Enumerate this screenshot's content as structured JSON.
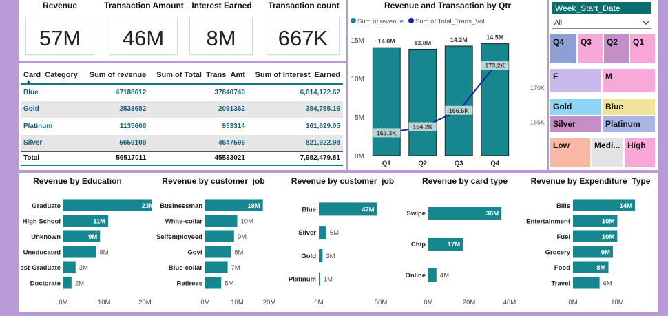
{
  "kpis": [
    {
      "title": "Revenue",
      "value": "57M"
    },
    {
      "title": "Transaction Amount",
      "value": "46M"
    },
    {
      "title": "Interest Earned",
      "value": "8M"
    },
    {
      "title": "Transaction count",
      "value": "667K"
    }
  ],
  "category_table": {
    "headers": [
      "Card_Category",
      "Sum of revenue",
      "Sum of Total_Trans_Amt",
      "Sum of Interest_Earned"
    ],
    "rows": [
      [
        "Blue",
        "47188612",
        "37840749",
        "6,614,172.62"
      ],
      [
        "Gold",
        "2533682",
        "2091362",
        "384,755.16"
      ],
      [
        "Platinum",
        "1135608",
        "953314",
        "161,629.05"
      ],
      [
        "Silver",
        "5659109",
        "4647596",
        "821,922.98"
      ]
    ],
    "total": [
      "Total",
      "56517011",
      "45533021",
      "7,982,479.81"
    ]
  },
  "slicers": {
    "header": "Week_Start_Date",
    "dropdown_value": "All",
    "quarters": [
      {
        "label": "Q4",
        "color": "#8e9fd6"
      },
      {
        "label": "Q3",
        "color": "#f7a8d8"
      },
      {
        "label": "Q2",
        "color": "#c48ec8"
      },
      {
        "label": "Q1",
        "color": "#f7a8d8"
      }
    ],
    "gender": [
      {
        "label": "F",
        "color": "#c9b8ea"
      },
      {
        "label": "M",
        "color": "#f7aad9"
      }
    ],
    "card": [
      {
        "label": "Gold",
        "color": "#8fd3f5"
      },
      {
        "label": "Blue",
        "color": "#f2e39a"
      },
      {
        "label": "Silver",
        "color": "#c48ec8"
      },
      {
        "label": "Platinum",
        "color": "#a8b5e6"
      }
    ],
    "income": [
      {
        "label": "Low",
        "color": "#f7b9a3"
      },
      {
        "label": "Medi...",
        "color": "#e3e3e3"
      },
      {
        "label": "High",
        "color": "#f7a8d8"
      }
    ]
  },
  "chart_data": [
    {
      "type": "bar",
      "title": "Revenue and Transaction by Qtr",
      "legend": [
        {
          "name": "Sum of revenue",
          "color": "#16878e"
        },
        {
          "name": "Sum of Total_Trans_Vol",
          "color": "#12239e"
        }
      ],
      "legend_position": "top-left",
      "categories": [
        "Q1",
        "Q2",
        "Q3",
        "Q4"
      ],
      "series": [
        {
          "name": "Sum of revenue",
          "type": "bar",
          "values": [
            14.0,
            13.8,
            14.2,
            14.5
          ],
          "labels": [
            "14.0M",
            "13.8M",
            "14.2M",
            "14.5M"
          ]
        },
        {
          "name": "Sum of Total_Trans_Vol",
          "type": "line",
          "values": [
            163.3,
            164.2,
            166.6,
            173.2
          ],
          "labels": [
            "163.3K",
            "164.2K",
            "166.6K",
            "173.2K"
          ]
        }
      ],
      "yticks_left": [
        "15M",
        "10M",
        "5M",
        "0M"
      ],
      "ylim_left": [
        0,
        15
      ],
      "yticks_right": [
        "170K",
        "165K"
      ],
      "grid": false
    },
    {
      "type": "bar",
      "orientation": "horizontal",
      "title": "Revenue by Education",
      "categories": [
        "Graduate",
        "High School",
        "Unknown",
        "Uneducated",
        "Post-Graduate",
        "Doctorate"
      ],
      "values": [
        23,
        11,
        9,
        8,
        3,
        2
      ],
      "labels": [
        "23M",
        "11M",
        "9M",
        "8M",
        "3M",
        "2M"
      ],
      "xticks": [
        "0M",
        "10M",
        "20M"
      ],
      "xlim": [
        0,
        25
      ]
    },
    {
      "type": "bar",
      "orientation": "horizontal",
      "title": "Revenue by customer_job",
      "categories": [
        "Businessman",
        "White-collar",
        "Selfemployeed",
        "Govt",
        "Blue-collar",
        "Retirees"
      ],
      "values": [
        18,
        10,
        9,
        8,
        7,
        5
      ],
      "labels": [
        "18M",
        "10M",
        "9M",
        "8M",
        "7M",
        "5M"
      ],
      "xticks": [
        "0M",
        "10M",
        "20M"
      ],
      "xlim": [
        0,
        20
      ]
    },
    {
      "type": "bar",
      "orientation": "horizontal",
      "title": "Revenue by customer_job",
      "categories": [
        "Blue",
        "Silver",
        "Gold",
        "Platinum"
      ],
      "values": [
        47,
        6,
        3,
        1
      ],
      "labels": [
        "47M",
        "6M",
        "3M",
        "1M"
      ],
      "xticks": [
        "0M",
        "50M"
      ],
      "xlim": [
        0,
        50
      ]
    },
    {
      "type": "bar",
      "orientation": "horizontal",
      "title": "Revenue by card type",
      "categories": [
        "Swipe",
        "Chip",
        "Online"
      ],
      "values": [
        36,
        17,
        4
      ],
      "labels": [
        "36M",
        "17M",
        "4M"
      ],
      "xticks": [
        "0M",
        "20M",
        "40M"
      ],
      "xlim": [
        0,
        40
      ]
    },
    {
      "type": "bar",
      "orientation": "horizontal",
      "title": "Revenue by Expenditure_Type",
      "categories": [
        "Bills",
        "Entertainment",
        "Fuel",
        "Grocery",
        "Food",
        "Travel"
      ],
      "values": [
        14,
        10,
        10,
        9,
        8,
        6
      ],
      "labels": [
        "14M",
        "10M",
        "10M",
        "9M",
        "8M",
        "6M"
      ],
      "xticks": [
        "0M",
        "10M"
      ],
      "xlim": [
        0,
        16
      ]
    }
  ]
}
